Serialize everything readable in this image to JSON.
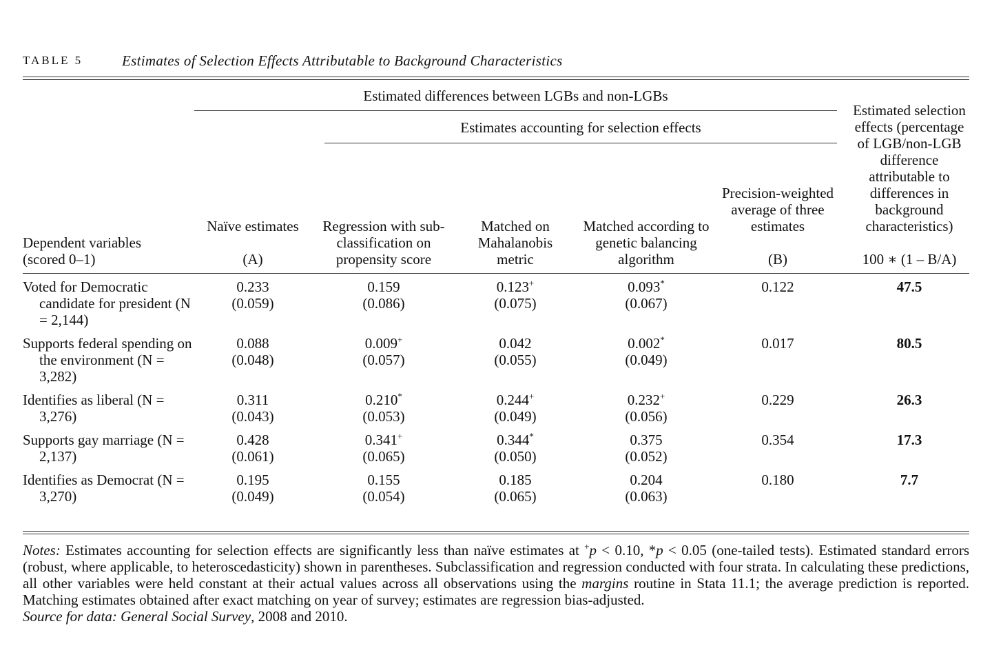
{
  "caption": {
    "label": "TABLE 5",
    "title": "Estimates of Selection Effects Attributable to Background Characteristics"
  },
  "header": {
    "spanner_outer": "Estimated differences between LGBs and non-LGBs",
    "spanner_inner": "Estimates accounting for selection effects",
    "columns": [
      {
        "label": "Dependent variables (scored 0–1)"
      },
      {
        "label": "Naïve estimates",
        "code": "(A)"
      },
      {
        "label": "Regression with sub-classification on propensity score"
      },
      {
        "label": "Matched on Mahalanobis metric"
      },
      {
        "label": "Matched according to genetic balancing algorithm"
      },
      {
        "label": "Precision-weighted average of three estimates",
        "code": "(B)"
      },
      {
        "label": "Estimated selection effects (percentage of LGB/non-LGB difference attributable to differences in background characteristics)",
        "code": "100 ∗ (1 – B/A)"
      }
    ]
  },
  "table": {
    "rows": [
      {
        "variable": "Voted for Democratic candidate for president (N = 2,144)",
        "cells": [
          {
            "value": "0.233",
            "se": "(0.059)"
          },
          {
            "value": "0.159",
            "se": "(0.086)"
          },
          {
            "value": "0.123",
            "sig": "+",
            "se": "(0.075)"
          },
          {
            "value": "0.093",
            "sig": "*",
            "se": "(0.067)"
          },
          {
            "value": "0.122"
          },
          {
            "value": "47.5"
          }
        ]
      },
      {
        "variable": "Supports federal spending on the environment (N = 3,282)",
        "cells": [
          {
            "value": "0.088",
            "se": "(0.048)"
          },
          {
            "value": "0.009",
            "sig": "+",
            "se": "(0.057)"
          },
          {
            "value": "0.042",
            "se": "(0.055)"
          },
          {
            "value": "0.002",
            "sig": "*",
            "se": "(0.049)"
          },
          {
            "value": "0.017"
          },
          {
            "value": "80.5"
          }
        ]
      },
      {
        "variable": "Identifies as liberal (N = 3,276)",
        "cells": [
          {
            "value": "0.311",
            "se": "(0.043)"
          },
          {
            "value": "0.210",
            "sig": "*",
            "se": "(0.053)"
          },
          {
            "value": "0.244",
            "sig": "+",
            "se": "(0.049)"
          },
          {
            "value": "0.232",
            "sig": "+",
            "se": "(0.056)"
          },
          {
            "value": "0.229"
          },
          {
            "value": "26.3"
          }
        ]
      },
      {
        "variable": "Supports gay marriage (N = 2,137)",
        "cells": [
          {
            "value": "0.428",
            "se": "(0.061)"
          },
          {
            "value": "0.341",
            "sig": "+",
            "se": "(0.065)"
          },
          {
            "value": "0.344",
            "sig": "*",
            "se": "(0.050)"
          },
          {
            "value": "0.375",
            "se": "(0.052)"
          },
          {
            "value": "0.354"
          },
          {
            "value": "17.3"
          }
        ]
      },
      {
        "variable": "Identifies as Democrat (N = 3,270)",
        "cells": [
          {
            "value": "0.195",
            "se": "(0.049)"
          },
          {
            "value": "0.155",
            "se": "(0.054)"
          },
          {
            "value": "0.185",
            "se": "(0.065)"
          },
          {
            "value": "0.204",
            "se": "(0.063)"
          },
          {
            "value": "0.180"
          },
          {
            "value": "7.7"
          }
        ]
      }
    ]
  },
  "notes": [
    {
      "text": "Notes:",
      "style": "italic"
    },
    {
      "text": " Estimates accounting for selection effects are significantly less than naïve estimates at ",
      "style": "normal"
    },
    {
      "text": "+",
      "style": "sup"
    },
    {
      "text": "p",
      "style": "italic"
    },
    {
      "text": " < 0.10, *",
      "style": "normal"
    },
    {
      "text": "p",
      "style": "italic"
    },
    {
      "text": " < 0.05 (one-tailed tests). Estimated standard errors (robust, where applicable, to heteroscedasticity) shown in parentheses. Subclassification and regression conducted with four strata. In calculating these predictions, all other variables were held constant at their actual values across all observations using the ",
      "style": "normal"
    },
    {
      "text": "margins",
      "style": "italic"
    },
    {
      "text": " routine in Stata 11.1; the average prediction is reported. Matching estimates obtained after exact matching on year of survey; estimates are regression bias-adjusted.",
      "style": "normal"
    }
  ],
  "source": [
    {
      "text": "Source for data: General Social Survey",
      "style": "italic"
    },
    {
      "text": ", 2008 and 2010.",
      "style": "normal"
    }
  ]
}
